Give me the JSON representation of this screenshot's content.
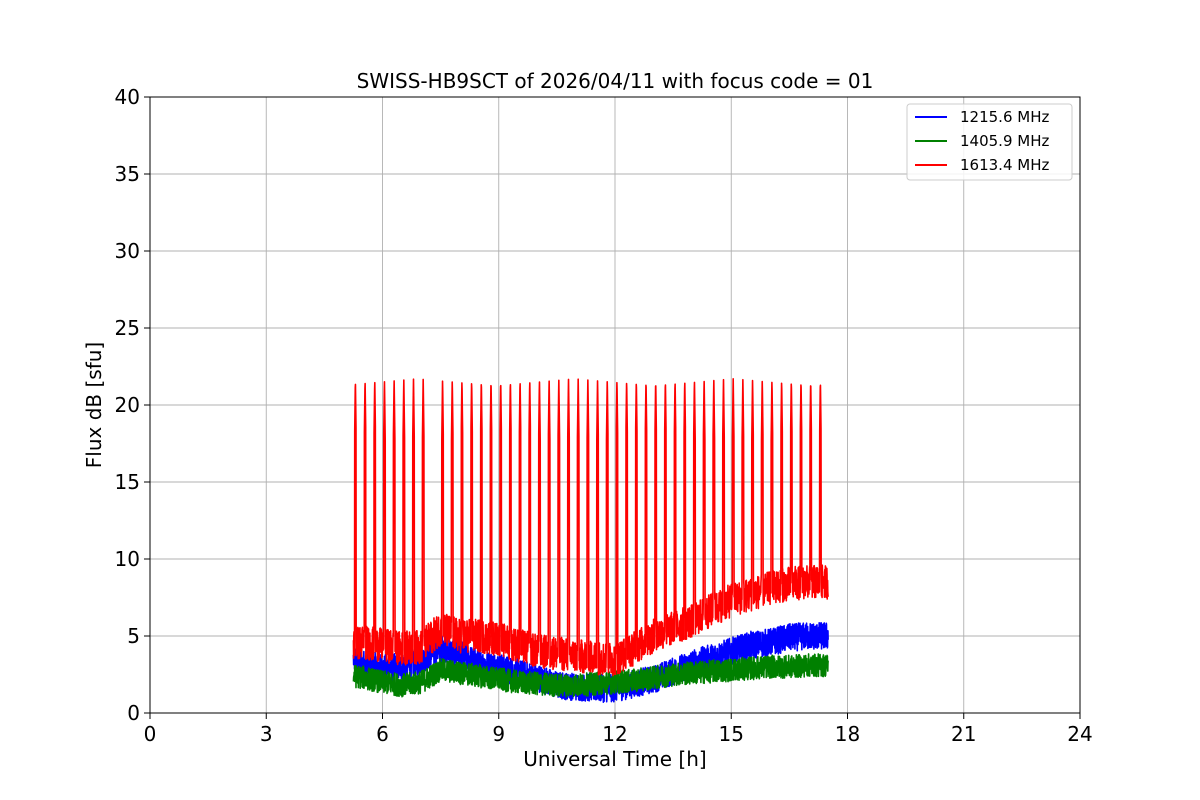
{
  "chart_data": {
    "type": "line",
    "title": "SWISS-HB9SCT of 2026/04/11 with focus code = 01",
    "xlabel": "Universal Time [h]",
    "ylabel": "Flux dB [sfu]",
    "xlim": [
      0,
      24
    ],
    "ylim": [
      0,
      40
    ],
    "xticks": [
      0,
      3,
      6,
      9,
      12,
      15,
      18,
      21,
      24
    ],
    "yticks": [
      0,
      5,
      10,
      15,
      20,
      25,
      30,
      35,
      40
    ],
    "grid": true,
    "legend_position": "top-right",
    "x_range_observed": [
      5.25,
      17.5
    ],
    "series": [
      {
        "name": "1215.6 MHz",
        "color": "#0000ff",
        "x": [
          5.25,
          5.5,
          6.0,
          6.5,
          7.0,
          7.5,
          8.0,
          8.5,
          9.0,
          9.5,
          10.0,
          10.5,
          11.0,
          11.5,
          12.0,
          12.5,
          13.0,
          13.5,
          14.0,
          14.5,
          15.0,
          15.5,
          16.0,
          16.5,
          17.0,
          17.5
        ],
        "values": [
          3.5,
          3.2,
          2.9,
          3.0,
          3.4,
          4.2,
          3.8,
          3.2,
          3.0,
          2.6,
          2.3,
          1.8,
          1.7,
          1.6,
          1.6,
          1.9,
          2.2,
          2.7,
          3.2,
          3.6,
          4.0,
          4.4,
          4.6,
          4.9,
          5.0,
          5.0
        ]
      },
      {
        "name": "1405.9 MHz",
        "color": "#008000",
        "x": [
          5.25,
          5.5,
          6.0,
          6.5,
          7.0,
          7.5,
          8.0,
          8.5,
          9.0,
          9.5,
          10.0,
          10.5,
          11.0,
          11.5,
          12.0,
          12.5,
          13.0,
          13.5,
          14.0,
          14.5,
          15.0,
          15.5,
          16.0,
          16.5,
          17.0,
          17.5
        ],
        "values": [
          2.4,
          2.3,
          2.0,
          1.8,
          2.0,
          2.8,
          2.6,
          2.4,
          2.2,
          2.0,
          1.9,
          1.8,
          1.8,
          1.9,
          2.0,
          2.1,
          2.3,
          2.5,
          2.6,
          2.7,
          2.8,
          2.9,
          3.0,
          3.0,
          3.1,
          3.1
        ]
      },
      {
        "name": "1613.4 MHz",
        "color": "#ff0000",
        "x": [
          5.25,
          5.5,
          6.0,
          6.5,
          7.0,
          7.5,
          8.0,
          8.5,
          9.0,
          9.5,
          10.0,
          10.5,
          11.0,
          11.5,
          12.0,
          12.5,
          13.0,
          13.5,
          14.0,
          14.5,
          15.0,
          15.5,
          16.0,
          16.5,
          17.0,
          17.5
        ],
        "values": [
          4.5,
          4.6,
          4.4,
          4.2,
          4.3,
          5.5,
          5.0,
          5.0,
          4.8,
          4.4,
          4.0,
          3.9,
          3.7,
          3.6,
          3.5,
          4.2,
          5.0,
          5.5,
          6.0,
          6.7,
          7.3,
          7.7,
          8.1,
          8.4,
          8.5,
          8.5
        ],
        "spike_times": [
          5.3,
          5.55,
          5.8,
          6.05,
          6.3,
          6.55,
          6.8,
          7.05,
          7.55,
          7.8,
          8.05,
          8.3,
          8.55,
          8.8,
          9.05,
          9.3,
          9.55,
          9.8,
          10.05,
          10.3,
          10.55,
          10.8,
          11.05,
          11.3,
          11.55,
          11.8,
          12.05,
          12.3,
          12.55,
          12.8,
          13.05,
          13.3,
          13.55,
          13.8,
          14.05,
          14.3,
          14.55,
          14.8,
          15.05,
          15.3,
          15.55,
          15.8,
          16.05,
          16.3,
          16.55,
          16.8,
          17.05,
          17.3
        ],
        "spike_peak": 21.7
      }
    ]
  }
}
